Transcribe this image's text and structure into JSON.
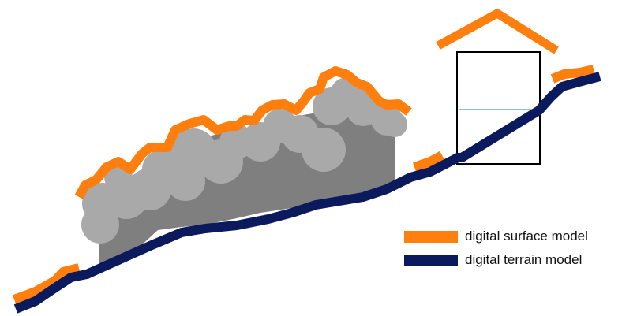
{
  "legend": {
    "surface": {
      "label": "digital surface model",
      "color": "#FF7F0E"
    },
    "terrain": {
      "label": "digital terrain model",
      "color": "#0B1A5C"
    }
  },
  "colors": {
    "vegetation_fill": "#7F7F7F",
    "canopy_circles": "#A9A9A9",
    "building_outline": "#000000",
    "building_inner_line": "#2E75B6",
    "background": "#FFFFFF"
  },
  "icons": {
    "trees": "vegetation-canopy-icon",
    "house": "house-icon"
  }
}
